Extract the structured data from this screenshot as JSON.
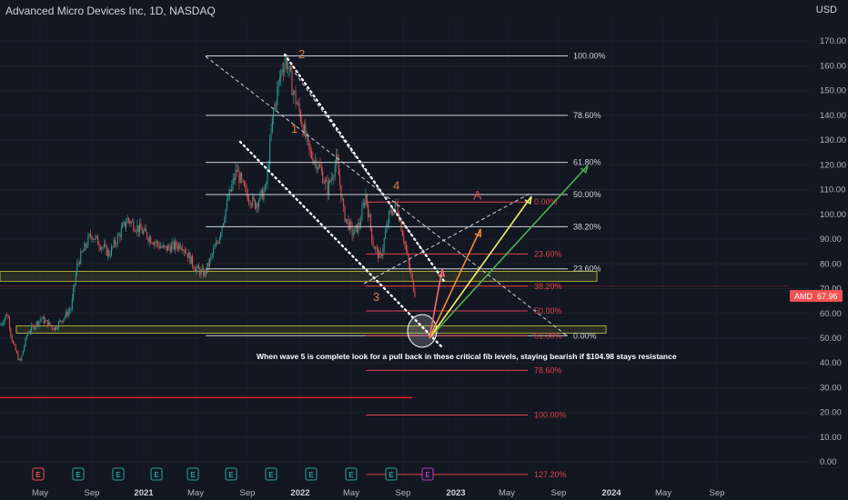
{
  "header": {
    "title": "Advanced Micro Devices Inc, 1D, NASDAQ",
    "currency": "USD"
  },
  "price_tag": {
    "symbol": "AMD",
    "price": "67.96"
  },
  "note": "When wave 5 is complete look for a pull back in these critical fib levels, staying bearish if $104.98 stays resistance",
  "earnings_markers": [
    "E",
    "E",
    "E",
    "E",
    "E",
    "E",
    "E",
    "E",
    "E",
    "E",
    "E"
  ],
  "colors": {
    "background": "#131722",
    "up": "#26a69a",
    "down": "#ef5350",
    "fib_white": "#d1d4dc",
    "fib_red": "#e0424a",
    "zone_yellow": "#c8c840",
    "arrow_yellow": "#f5f06a",
    "arrow_orange": "#f08c3a",
    "arrow_pink": "#f06a7a",
    "arrow_green": "#4caf50",
    "support_line": "#e02020"
  },
  "chart_data": {
    "type": "candlestick",
    "y_axis": {
      "ticks": [
        0,
        10,
        20,
        30,
        40,
        50,
        60,
        70,
        80,
        90,
        100,
        110,
        120,
        130,
        140,
        150,
        160,
        170
      ],
      "range": [
        -5,
        180
      ]
    },
    "x_axis": {
      "ticks": [
        "May",
        "Sep",
        "2021",
        "May",
        "Sep",
        "2022",
        "May",
        "Sep",
        "2023",
        "May",
        "Sep",
        "2024",
        "May",
        "Sep"
      ],
      "bold_ticks": [
        "2021",
        "2022",
        "2023",
        "2024"
      ]
    },
    "price_anchors": [
      {
        "x": 0,
        "y": 55
      },
      {
        "x": 8,
        "y": 60
      },
      {
        "x": 14,
        "y": 48
      },
      {
        "x": 22,
        "y": 40
      },
      {
        "x": 30,
        "y": 52
      },
      {
        "x": 45,
        "y": 58
      },
      {
        "x": 60,
        "y": 54
      },
      {
        "x": 78,
        "y": 62
      },
      {
        "x": 85,
        "y": 80
      },
      {
        "x": 100,
        "y": 92
      },
      {
        "x": 120,
        "y": 84
      },
      {
        "x": 140,
        "y": 98
      },
      {
        "x": 160,
        "y": 92
      },
      {
        "x": 180,
        "y": 86
      },
      {
        "x": 200,
        "y": 88
      },
      {
        "x": 215,
        "y": 78
      },
      {
        "x": 225,
        "y": 76
      },
      {
        "x": 240,
        "y": 90
      },
      {
        "x": 250,
        "y": 105
      },
      {
        "x": 260,
        "y": 118
      },
      {
        "x": 268,
        "y": 110
      },
      {
        "x": 280,
        "y": 104
      },
      {
        "x": 292,
        "y": 110
      },
      {
        "x": 300,
        "y": 140
      },
      {
        "x": 310,
        "y": 160
      },
      {
        "x": 315,
        "y": 162
      },
      {
        "x": 322,
        "y": 150
      },
      {
        "x": 330,
        "y": 140
      },
      {
        "x": 340,
        "y": 125
      },
      {
        "x": 350,
        "y": 120
      },
      {
        "x": 360,
        "y": 110
      },
      {
        "x": 370,
        "y": 122
      },
      {
        "x": 378,
        "y": 100
      },
      {
        "x": 388,
        "y": 92
      },
      {
        "x": 395,
        "y": 96
      },
      {
        "x": 402,
        "y": 108
      },
      {
        "x": 410,
        "y": 88
      },
      {
        "x": 418,
        "y": 82
      },
      {
        "x": 428,
        "y": 100
      },
      {
        "x": 436,
        "y": 104
      },
      {
        "x": 444,
        "y": 90
      },
      {
        "x": 450,
        "y": 78
      },
      {
        "x": 456,
        "y": 68
      }
    ],
    "fib_retracement_white": [
      {
        "label": "100.00%",
        "value": 164
      },
      {
        "label": "78.60%",
        "value": 140
      },
      {
        "label": "61.80%",
        "value": 121
      },
      {
        "label": "50.00%",
        "value": 108
      },
      {
        "label": "38.20%",
        "value": 95
      },
      {
        "label": "23.60%",
        "value": 78
      },
      {
        "label": "0.00%",
        "value": 51
      }
    ],
    "fib_extension_red": [
      {
        "label": "0.00%",
        "value": 104.98
      },
      {
        "label": "23.60%",
        "value": 84
      },
      {
        "label": "38.20%",
        "value": 71
      },
      {
        "label": "50.00%",
        "value": 61
      },
      {
        "label": "61.80%",
        "value": 51
      },
      {
        "label": "78.60%",
        "value": 37
      },
      {
        "label": "100.00%",
        "value": 19
      },
      {
        "label": "127.20%",
        "value": -5
      }
    ],
    "wave_labels": [
      {
        "label": "1",
        "x": 320,
        "y": 133
      },
      {
        "label": "2",
        "x": 328,
        "y": 163
      },
      {
        "label": "3",
        "x": 410,
        "y": 65
      },
      {
        "label": "4",
        "x": 432,
        "y": 110
      },
      {
        "label": "A",
        "x": 520,
        "y": 106
      }
    ],
    "zones": [
      {
        "from": 73,
        "to": 77
      },
      {
        "from": 52,
        "to": 55
      }
    ],
    "support_line_value": 26,
    "last_price": 67.96
  }
}
